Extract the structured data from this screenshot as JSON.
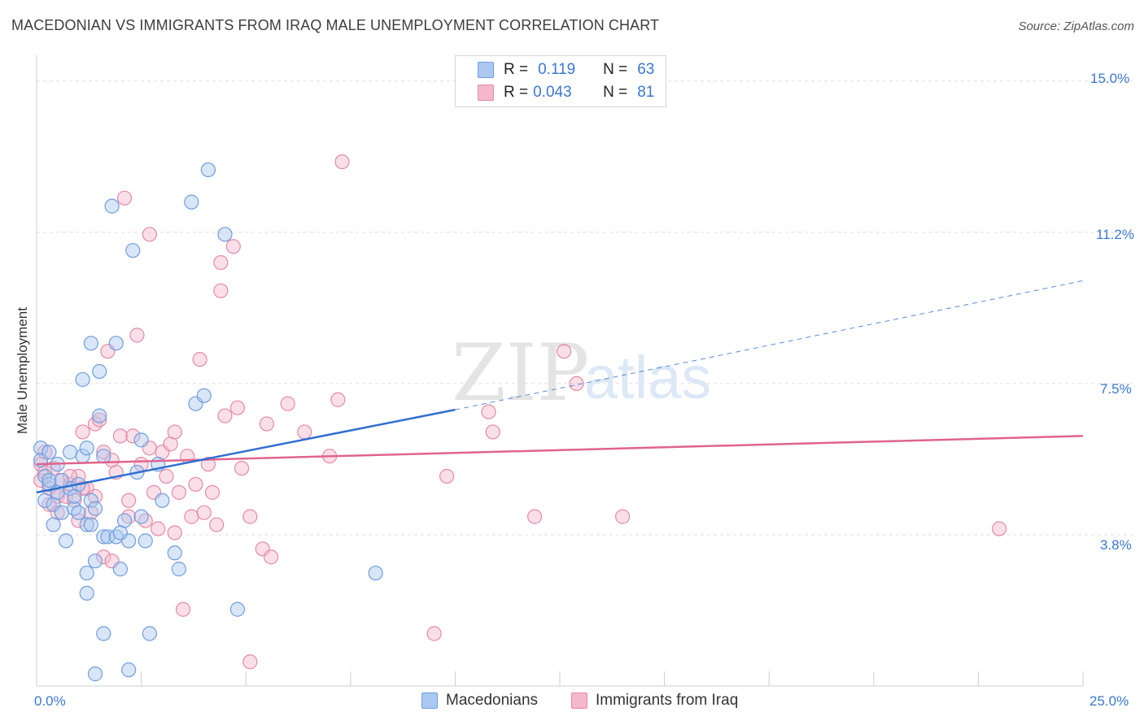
{
  "title": "MACEDONIAN VS IMMIGRANTS FROM IRAQ MALE UNEMPLOYMENT CORRELATION CHART",
  "source": "Source: ZipAtlas.com",
  "watermark": {
    "zip": "ZIP",
    "atlas": "atlas"
  },
  "legend": {
    "r_label": "R =",
    "n_label": "N =",
    "rows": [
      {
        "r": "0.119",
        "n": "63"
      },
      {
        "r": "0.043",
        "n": "81"
      }
    ]
  },
  "bottom_legend": {
    "macedonians": "Macedonians",
    "iraq": "Immigrants from Iraq"
  },
  "axis_labels": {
    "y": "Male Unemployment",
    "x_min": "0.0%",
    "x_max": "25.0%",
    "y_ticks": [
      "15.0%",
      "11.2%",
      "7.5%",
      "3.8%"
    ]
  },
  "colors": {
    "blue_fill": "#aac8f0",
    "blue_stroke": "#6f9ede",
    "blue_line": "#2f6fd0",
    "pink_fill": "#f5b8cb",
    "pink_stroke": "#e58aa6",
    "pink_line": "#e0648c",
    "grid": "#dcdcdc",
    "tick_text": "#3b78d2"
  },
  "chart_data": {
    "type": "scatter",
    "xlabel": "",
    "ylabel": "Male Unemployment",
    "xlim": [
      0,
      25
    ],
    "ylim": [
      0,
      15.5
    ],
    "y_ticks": [
      3.75,
      7.5,
      11.25,
      15.0
    ],
    "series": [
      {
        "name": "Macedonians",
        "r": 0.119,
        "n": 63,
        "trend": {
          "x0": 0.0,
          "y0": 4.8,
          "x1": 10.0,
          "y1": 6.85,
          "dashed_to_x": 25.0,
          "dashed_to_y": 10.05
        },
        "points": [
          [
            0.1,
            5.9
          ],
          [
            0.1,
            5.6
          ],
          [
            0.2,
            5.2
          ],
          [
            0.2,
            4.6
          ],
          [
            0.3,
            5.8
          ],
          [
            0.3,
            5.0
          ],
          [
            0.4,
            4.5
          ],
          [
            0.4,
            4.0
          ],
          [
            0.5,
            5.5
          ],
          [
            0.5,
            4.8
          ],
          [
            0.6,
            4.3
          ],
          [
            0.7,
            3.6
          ],
          [
            0.8,
            5.8
          ],
          [
            0.8,
            4.9
          ],
          [
            0.9,
            4.4
          ],
          [
            1.0,
            5.0
          ],
          [
            1.0,
            4.3
          ],
          [
            1.1,
            5.7
          ],
          [
            1.1,
            7.6
          ],
          [
            1.2,
            5.9
          ],
          [
            1.2,
            4.0
          ],
          [
            1.3,
            8.5
          ],
          [
            1.3,
            4.6
          ],
          [
            1.4,
            4.4
          ],
          [
            1.4,
            3.1
          ],
          [
            1.5,
            7.8
          ],
          [
            1.5,
            6.7
          ],
          [
            1.6,
            3.7
          ],
          [
            1.6,
            1.3
          ],
          [
            1.7,
            3.7
          ],
          [
            1.8,
            11.9
          ],
          [
            1.9,
            8.5
          ],
          [
            1.9,
            3.7
          ],
          [
            2.0,
            2.9
          ],
          [
            2.1,
            4.1
          ],
          [
            2.2,
            3.6
          ],
          [
            2.2,
            0.4
          ],
          [
            2.3,
            10.8
          ],
          [
            2.4,
            5.3
          ],
          [
            2.5,
            6.1
          ],
          [
            2.5,
            4.2
          ],
          [
            2.6,
            3.6
          ],
          [
            2.7,
            1.3
          ],
          [
            2.9,
            5.5
          ],
          [
            3.0,
            4.6
          ],
          [
            3.3,
            3.3
          ],
          [
            3.4,
            2.9
          ],
          [
            3.7,
            12.0
          ],
          [
            3.8,
            7.0
          ],
          [
            4.0,
            7.2
          ],
          [
            4.1,
            12.8
          ],
          [
            4.5,
            11.2
          ],
          [
            4.8,
            1.9
          ],
          [
            8.1,
            2.8
          ],
          [
            1.2,
            2.3
          ],
          [
            1.2,
            2.8
          ],
          [
            1.4,
            0.3
          ],
          [
            1.6,
            5.7
          ],
          [
            0.3,
            5.1
          ],
          [
            0.6,
            5.1
          ],
          [
            0.9,
            4.7
          ],
          [
            1.3,
            4.0
          ],
          [
            2.0,
            3.8
          ]
        ]
      },
      {
        "name": "Immigrants from Iraq",
        "r": 0.043,
        "n": 81,
        "trend": {
          "x0": 0.0,
          "y0": 5.5,
          "x1": 25.0,
          "y1": 6.2
        },
        "points": [
          [
            0.1,
            5.5
          ],
          [
            0.1,
            5.1
          ],
          [
            0.2,
            5.8
          ],
          [
            0.2,
            5.3
          ],
          [
            0.3,
            4.9
          ],
          [
            0.3,
            4.5
          ],
          [
            0.4,
            5.4
          ],
          [
            0.5,
            4.7
          ],
          [
            0.5,
            4.3
          ],
          [
            0.6,
            5.1
          ],
          [
            0.7,
            4.7
          ],
          [
            0.8,
            5.0
          ],
          [
            0.9,
            4.6
          ],
          [
            1.0,
            4.1
          ],
          [
            1.0,
            5.2
          ],
          [
            1.1,
            6.3
          ],
          [
            1.2,
            4.9
          ],
          [
            1.3,
            4.3
          ],
          [
            1.4,
            6.5
          ],
          [
            1.4,
            4.7
          ],
          [
            1.5,
            6.6
          ],
          [
            1.6,
            3.2
          ],
          [
            1.7,
            8.3
          ],
          [
            1.8,
            5.6
          ],
          [
            1.8,
            3.1
          ],
          [
            1.9,
            5.3
          ],
          [
            2.0,
            6.2
          ],
          [
            2.1,
            12.1
          ],
          [
            2.2,
            4.2
          ],
          [
            2.3,
            6.2
          ],
          [
            2.4,
            8.7
          ],
          [
            2.5,
            5.5
          ],
          [
            2.6,
            4.1
          ],
          [
            2.7,
            5.9
          ],
          [
            2.7,
            11.2
          ],
          [
            2.8,
            4.8
          ],
          [
            2.9,
            3.9
          ],
          [
            3.0,
            5.8
          ],
          [
            3.1,
            5.2
          ],
          [
            3.2,
            6.0
          ],
          [
            3.3,
            6.3
          ],
          [
            3.4,
            4.8
          ],
          [
            3.5,
            1.9
          ],
          [
            3.6,
            5.7
          ],
          [
            3.7,
            4.2
          ],
          [
            3.8,
            5.0
          ],
          [
            3.9,
            8.1
          ],
          [
            4.0,
            4.3
          ],
          [
            4.1,
            5.5
          ],
          [
            4.2,
            4.8
          ],
          [
            4.3,
            4.0
          ],
          [
            4.4,
            9.8
          ],
          [
            4.4,
            10.5
          ],
          [
            4.5,
            6.7
          ],
          [
            4.7,
            10.9
          ],
          [
            4.8,
            6.9
          ],
          [
            4.9,
            5.4
          ],
          [
            5.1,
            4.2
          ],
          [
            5.1,
            0.6
          ],
          [
            5.4,
            3.4
          ],
          [
            5.5,
            6.5
          ],
          [
            5.6,
            3.2
          ],
          [
            6.0,
            7.0
          ],
          [
            6.4,
            6.3
          ],
          [
            7.0,
            5.7
          ],
          [
            7.2,
            7.1
          ],
          [
            7.3,
            13.0
          ],
          [
            9.5,
            1.3
          ],
          [
            9.8,
            5.2
          ],
          [
            10.8,
            6.8
          ],
          [
            10.9,
            6.3
          ],
          [
            11.9,
            4.2
          ],
          [
            12.6,
            8.3
          ],
          [
            12.9,
            7.5
          ],
          [
            14.0,
            4.2
          ],
          [
            23.0,
            3.9
          ],
          [
            1.1,
            4.9
          ],
          [
            1.6,
            5.8
          ],
          [
            2.2,
            4.6
          ],
          [
            3.3,
            3.8
          ],
          [
            0.8,
            5.2
          ]
        ]
      }
    ]
  }
}
